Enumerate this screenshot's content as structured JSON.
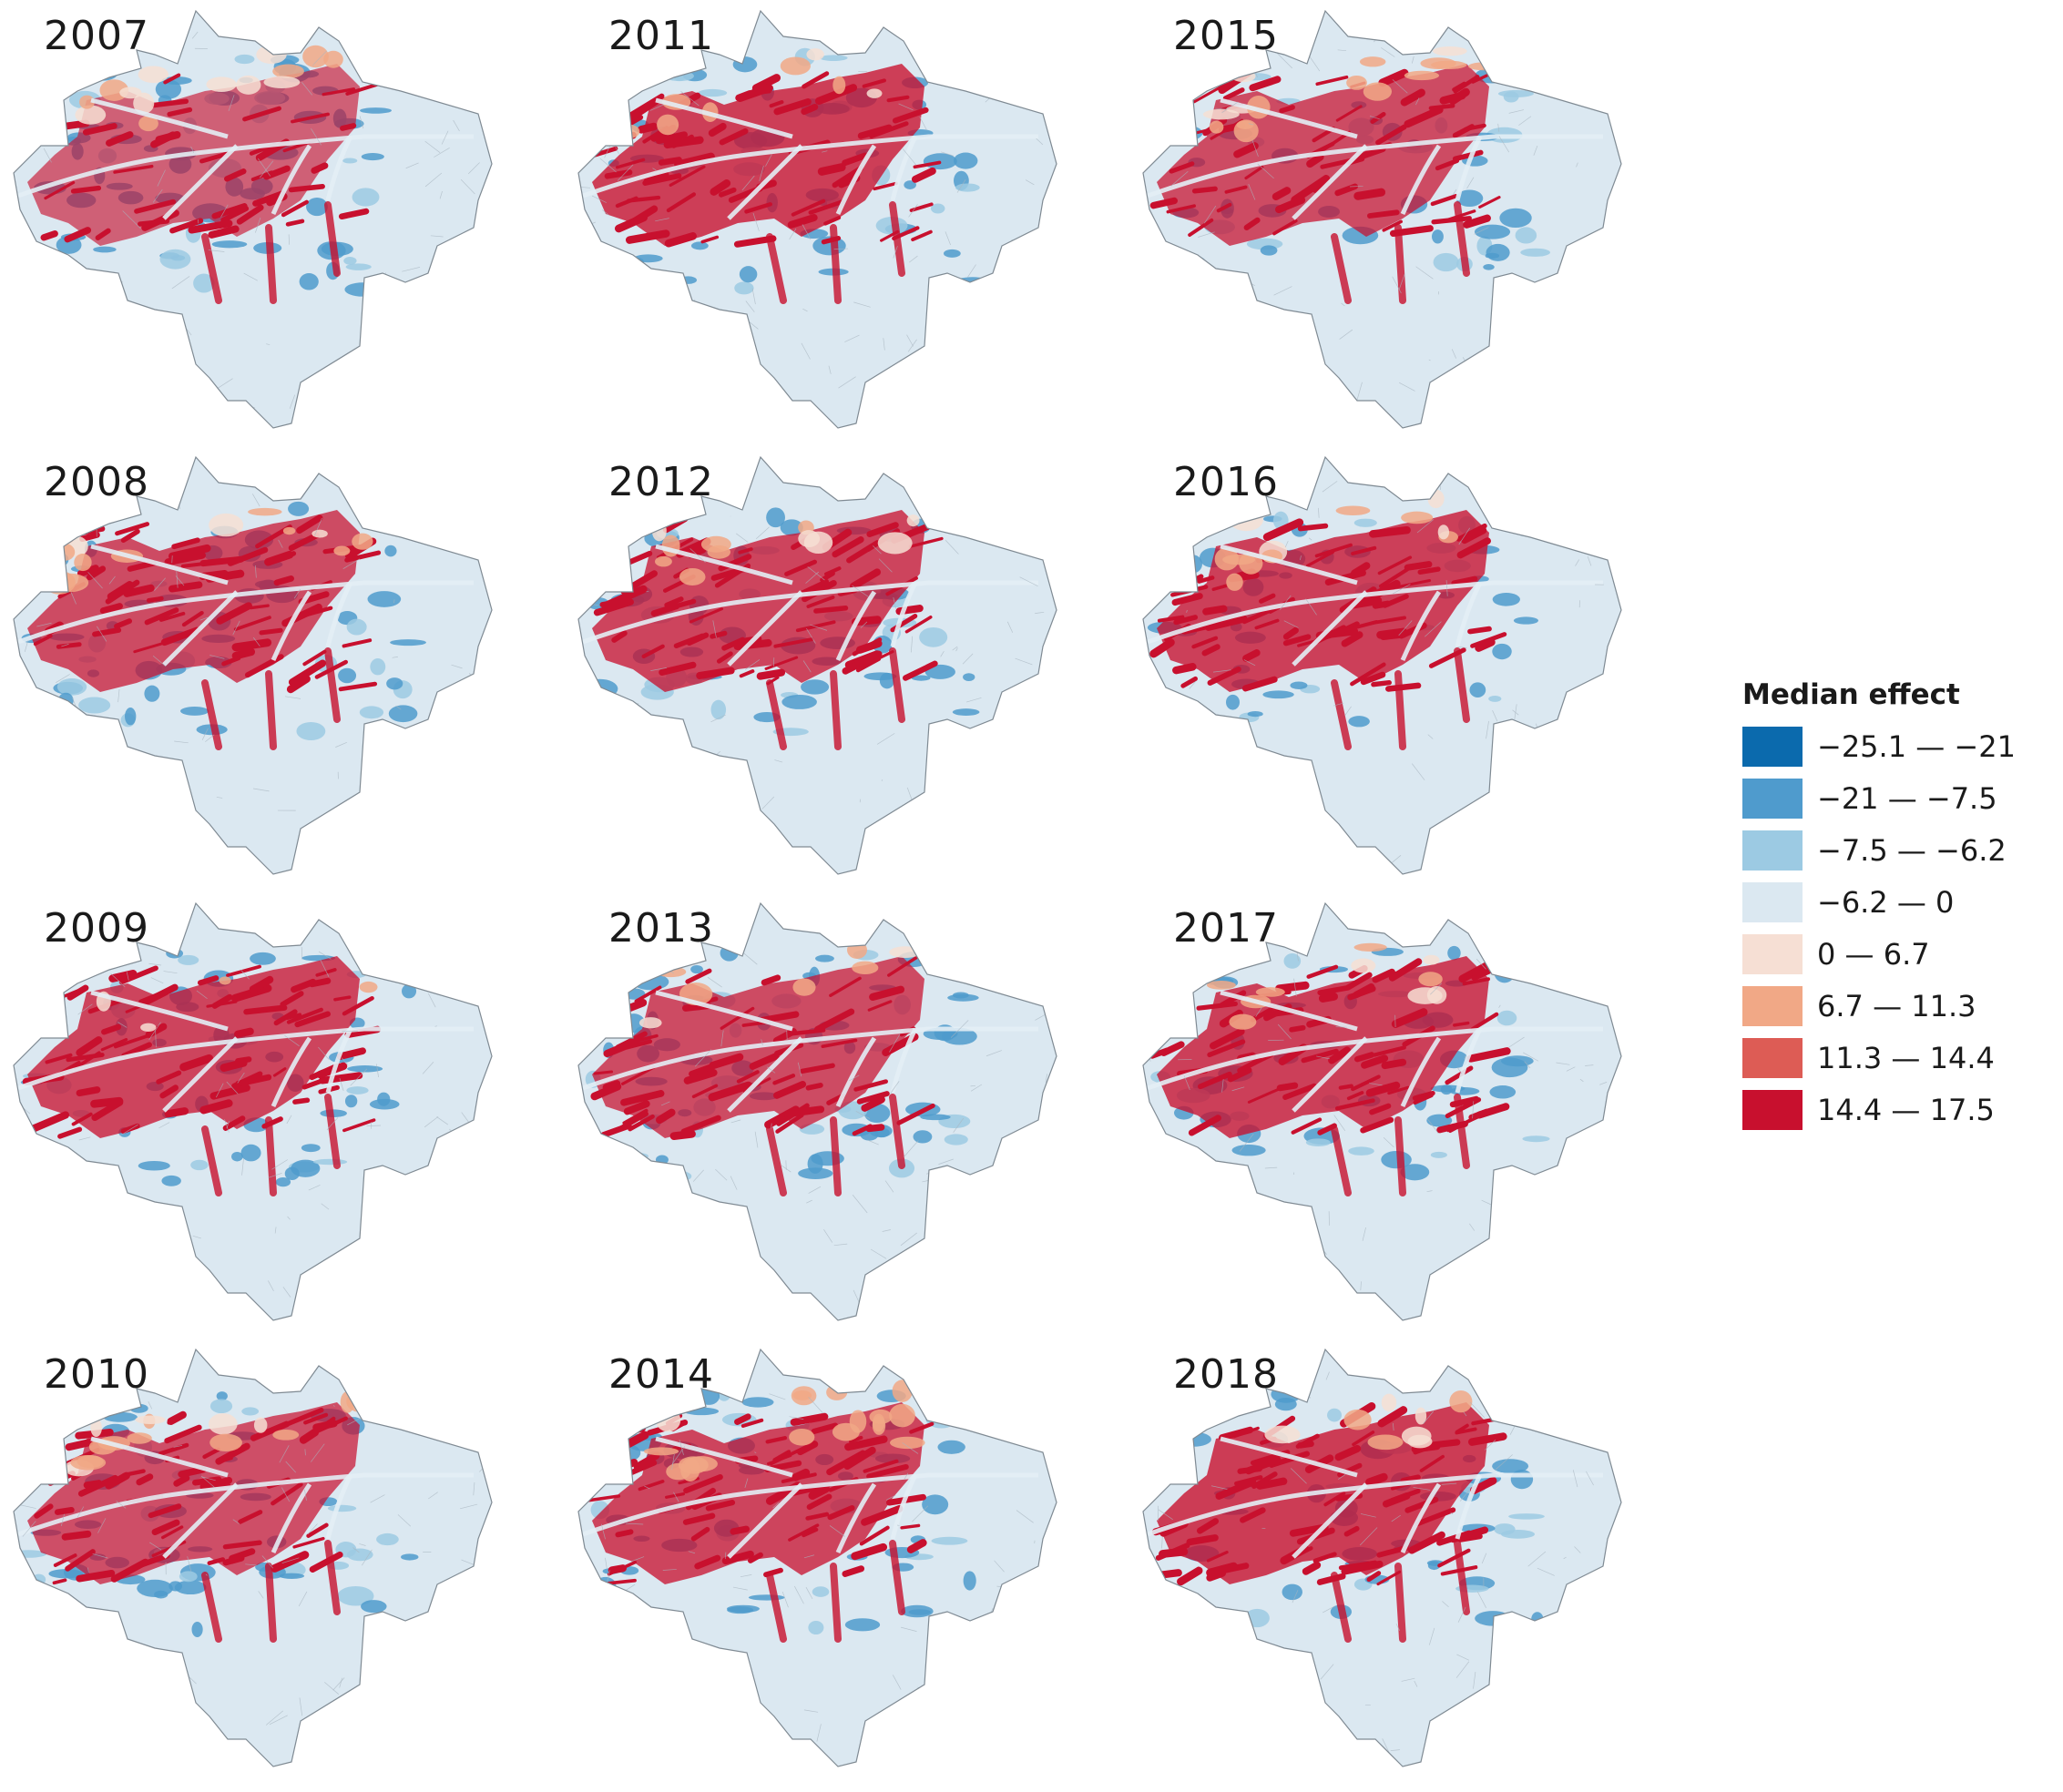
{
  "panels": [
    {
      "year": "2007",
      "red": 0.5,
      "orange": 0.35,
      "blue": 0.55
    },
    {
      "year": "2011",
      "red": 0.8,
      "orange": 0.2,
      "blue": 0.4
    },
    {
      "year": "2015",
      "red": 0.7,
      "orange": 0.4,
      "blue": 0.35
    },
    {
      "year": "2008",
      "red": 0.7,
      "orange": 0.35,
      "blue": 0.4
    },
    {
      "year": "2012",
      "red": 0.75,
      "orange": 0.3,
      "blue": 0.4
    },
    {
      "year": "2016",
      "red": 0.78,
      "orange": 0.3,
      "blue": 0.35
    },
    {
      "year": "2009",
      "red": 0.75,
      "orange": 0.1,
      "blue": 0.45
    },
    {
      "year": "2013",
      "red": 0.7,
      "orange": 0.25,
      "blue": 0.5
    },
    {
      "year": "2017",
      "red": 0.78,
      "orange": 0.3,
      "blue": 0.35
    },
    {
      "year": "2010",
      "red": 0.65,
      "orange": 0.45,
      "blue": 0.4
    },
    {
      "year": "2014",
      "red": 0.75,
      "orange": 0.45,
      "blue": 0.4
    },
    {
      "year": "2018",
      "red": 0.82,
      "orange": 0.2,
      "blue": 0.35
    }
  ],
  "legend": {
    "title": "Median effect",
    "classes": [
      {
        "label": "−25.1 — −21",
        "color": "#0b6aad"
      },
      {
        "label": "−21 — −7.5",
        "color": "#4f9bcd"
      },
      {
        "label": "−7.5 — −6.2",
        "color": "#9ccae3"
      },
      {
        "label": "−6.2 — 0",
        "color": "#dbe8f1"
      },
      {
        "label": "0 — 6.7",
        "color": "#f6dfd4"
      },
      {
        "label": "6.7 — 11.3",
        "color": "#f1a886"
      },
      {
        "label": "11.3 — 14.4",
        "color": "#dd5c55"
      },
      {
        "label": "14.4 — 17.5",
        "color": "#c8102e"
      }
    ]
  }
}
